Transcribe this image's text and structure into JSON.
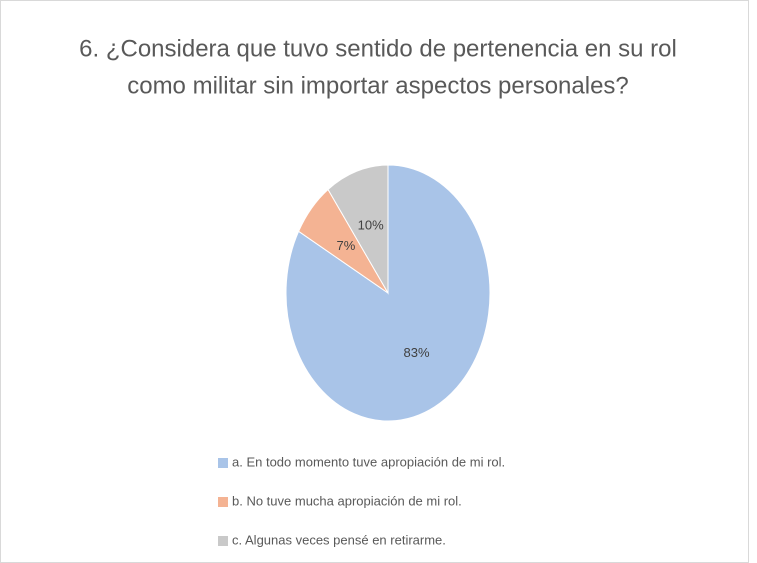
{
  "chart_data": {
    "type": "pie",
    "title": [
      "6. ¿Considera que tuvo sentido de pertenencia  en su rol",
      "como militar sin importar aspectos personales?"
    ],
    "categories": [
      "a. En todo momento tuve apropiación de mi rol.",
      "b. No tuve mucha apropiación de mi rol.",
      "c. Algunas veces pensé en retirarme."
    ],
    "values": [
      83,
      7,
      10
    ],
    "value_labels": [
      "83%",
      "7%",
      "10%"
    ],
    "colors": [
      "#a9c4e8",
      "#f4b393",
      "#c9c9c9"
    ],
    "legend": "bottom"
  }
}
